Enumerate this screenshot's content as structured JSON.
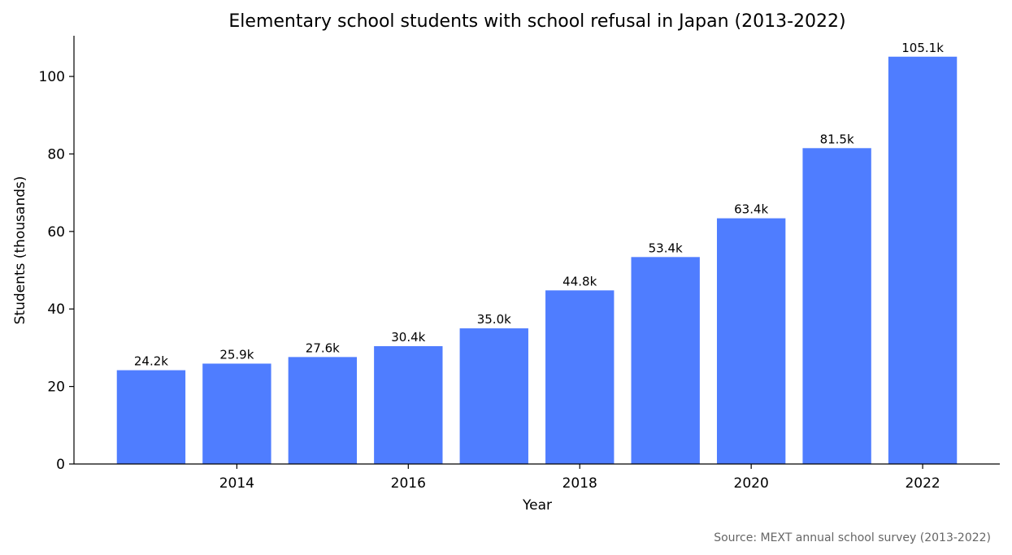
{
  "chart_data": {
    "type": "bar",
    "title": "Elementary school students with school refusal in Japan (2013-2022)",
    "xlabel": "Year",
    "ylabel": "Students (thousands)",
    "source_note": "Source: MEXT annual school survey (2013-2022)",
    "categories": [
      2013,
      2014,
      2015,
      2016,
      2017,
      2018,
      2019,
      2020,
      2021,
      2022
    ],
    "values": [
      24.2,
      25.9,
      27.6,
      30.4,
      35.0,
      44.8,
      53.4,
      63.4,
      81.5,
      105.1
    ],
    "data_labels": [
      "24.2k",
      "25.9k",
      "27.6k",
      "30.4k",
      "35.0k",
      "44.8k",
      "53.4k",
      "63.4k",
      "81.5k",
      "105.1k"
    ],
    "xticks": [
      2014,
      2016,
      2018,
      2020,
      2022
    ],
    "xtick_labels": [
      "2014",
      "2016",
      "2018",
      "2020",
      "2022"
    ],
    "yticks": [
      0,
      20,
      40,
      60,
      80,
      100
    ],
    "ytick_labels": [
      "0",
      "20",
      "40",
      "60",
      "80",
      "100"
    ],
    "xlim": [
      2012.1,
      2022.9
    ],
    "ylim": [
      0,
      110.5
    ],
    "grid": false,
    "bar_color": "#4f7dff",
    "text_color": "#000000",
    "source_color": "#666666"
  }
}
